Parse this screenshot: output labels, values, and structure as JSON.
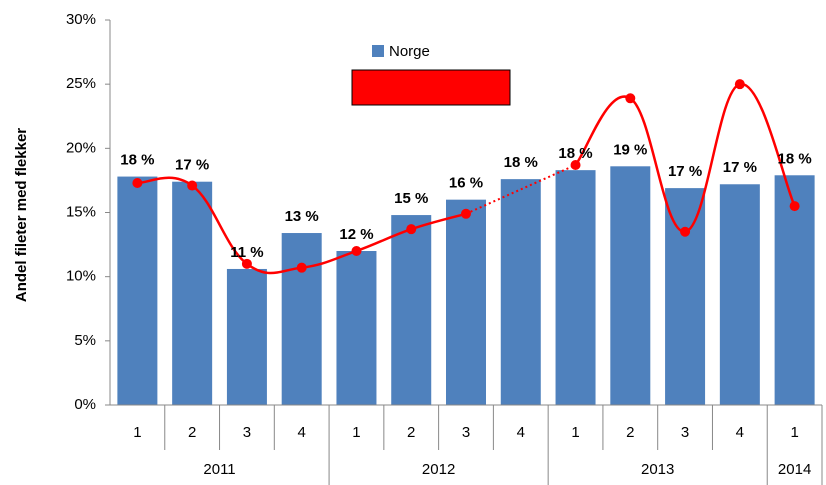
{
  "chart_data": {
    "type": "bar-line",
    "y_label": "Andel fileter med flekker",
    "categories": [
      "1",
      "2",
      "3",
      "4",
      "1",
      "2",
      "3",
      "4",
      "1",
      "2",
      "3",
      "4",
      "1"
    ],
    "year_categories": [
      "2011",
      null,
      null,
      null,
      "2012",
      null,
      null,
      null,
      "2013",
      null,
      null,
      null,
      "2014"
    ],
    "series": [
      {
        "name": "Norge",
        "type": "bar",
        "color": "#4f81bd",
        "values": [
          17.8,
          17.4,
          10.6,
          13.4,
          12.0,
          14.8,
          16.0,
          17.6,
          18.3,
          18.6,
          16.9,
          17.2,
          17.9
        ],
        "value_labels": [
          "18 %",
          "17 %",
          "11 %",
          "13 %",
          "12 %",
          "15 %",
          "16 %",
          "18 %",
          "18 %",
          "19 %",
          "17 %",
          "17 %",
          "18 %"
        ]
      },
      {
        "type": "line",
        "color": "#ff0000",
        "values": [
          17.3,
          17.1,
          11.0,
          10.7,
          12.0,
          13.7,
          14.9,
          null,
          18.7,
          23.9,
          13.5,
          25.0,
          15.5
        ]
      }
    ],
    "ylim": [
      0,
      30
    ],
    "yticks": [
      {
        "value": 0,
        "label": "0%"
      },
      {
        "value": 5,
        "label": "5%"
      },
      {
        "value": 10,
        "label": "10%"
      },
      {
        "value": 15,
        "label": "15%"
      },
      {
        "value": 20,
        "label": "20%"
      },
      {
        "value": 25,
        "label": "25%"
      },
      {
        "value": 30,
        "label": "30%"
      }
    ],
    "legend": "top"
  }
}
